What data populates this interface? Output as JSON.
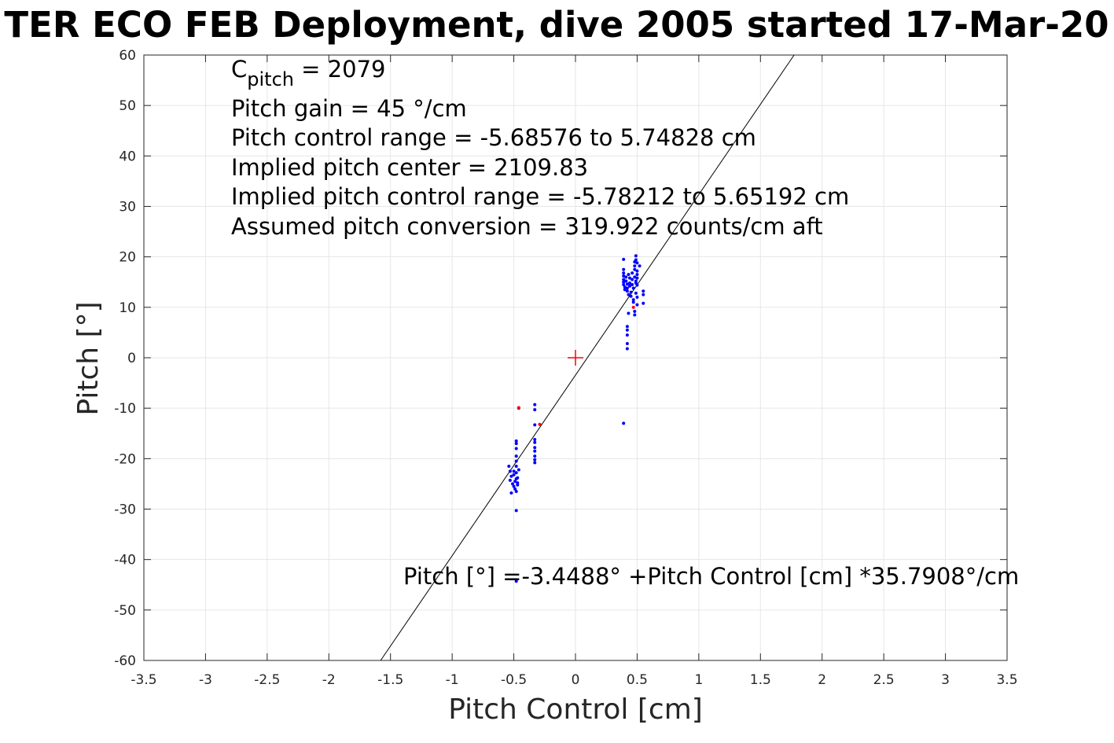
{
  "chart_data": {
    "type": "scatter",
    "title": "TER ECO FEB Deployment, dive 2005 started 17-Mar-20",
    "xlabel": "Pitch Control [cm]",
    "ylabel": "Pitch [°]",
    "xlim": [
      -3.5,
      3.5
    ],
    "ylim": [
      -60,
      60
    ],
    "xticks": [
      -3.5,
      -3,
      -2.5,
      -2,
      -1.5,
      -1,
      -0.5,
      0,
      0.5,
      1,
      1.5,
      2,
      2.5,
      3,
      3.5
    ],
    "yticks": [
      -60,
      -50,
      -40,
      -30,
      -20,
      -10,
      0,
      10,
      20,
      30,
      40,
      50,
      60
    ],
    "xtick_labels": [
      "-3.5",
      "-3",
      "-2.5",
      "-2",
      "-1.5",
      "-1",
      "-0.5",
      "0",
      "0.5",
      "1",
      "1.5",
      "2",
      "2.5",
      "3",
      "3.5"
    ],
    "ytick_labels": [
      "-60",
      "-50",
      "-40",
      "-30",
      "-20",
      "-10",
      "0",
      "10",
      "20",
      "30",
      "40",
      "50",
      "60"
    ],
    "grid": true,
    "colors": {
      "main": "#0000ff",
      "flagged": "#ff0000",
      "fit": "#000000",
      "center": "#ff0000"
    },
    "series": [
      {
        "color": "#0000ff",
        "points": [
          [
            -0.54,
            -21.5
          ],
          [
            -0.53,
            -22.5
          ],
          [
            -0.52,
            -23.5
          ],
          [
            -0.53,
            -24.3
          ],
          [
            -0.51,
            -25.0
          ],
          [
            -0.52,
            -26.8
          ],
          [
            -0.5,
            -22.5
          ],
          [
            -0.5,
            -23.2
          ],
          [
            -0.49,
            -24.5
          ],
          [
            -0.5,
            -25.5
          ],
          [
            -0.49,
            -26.0
          ],
          [
            -0.48,
            -21.5
          ],
          [
            -0.48,
            -22.8
          ],
          [
            -0.48,
            -24.0
          ],
          [
            -0.47,
            -25.2
          ],
          [
            -0.48,
            -18.0
          ],
          [
            -0.48,
            -17.0
          ],
          [
            -0.48,
            -16.5
          ],
          [
            -0.48,
            -19.5
          ],
          [
            -0.48,
            -20.5
          ],
          [
            -0.47,
            -23.8
          ],
          [
            -0.47,
            -24.8
          ],
          [
            -0.48,
            -26.5
          ],
          [
            -0.46,
            -22.2
          ],
          [
            -0.48,
            -30.3
          ],
          [
            -0.48,
            -44.3
          ],
          [
            -0.46,
            -10.0
          ],
          [
            -0.33,
            -9.3
          ],
          [
            -0.33,
            -10.3
          ],
          [
            -0.33,
            -13.3
          ],
          [
            -0.33,
            -16.2
          ],
          [
            -0.33,
            -16.8
          ],
          [
            -0.33,
            -17.8
          ],
          [
            -0.33,
            -18.5
          ],
          [
            -0.33,
            -19.5
          ],
          [
            -0.33,
            -20.2
          ],
          [
            -0.33,
            -20.8
          ],
          [
            0.39,
            19.5
          ],
          [
            0.39,
            17.5
          ],
          [
            0.39,
            16.8
          ],
          [
            0.39,
            16.2
          ],
          [
            0.39,
            15.5
          ],
          [
            0.39,
            15.0
          ],
          [
            0.39,
            14.5
          ],
          [
            0.4,
            14.0
          ],
          [
            0.4,
            13.5
          ],
          [
            0.41,
            16.0
          ],
          [
            0.41,
            15.2
          ],
          [
            0.42,
            14.6
          ],
          [
            0.42,
            13.8
          ],
          [
            0.42,
            13.2
          ],
          [
            0.43,
            12.5
          ],
          [
            0.43,
            16.5
          ],
          [
            0.44,
            15.8
          ],
          [
            0.44,
            14.8
          ],
          [
            0.44,
            14.2
          ],
          [
            0.45,
            13.0
          ],
          [
            0.45,
            12.2
          ],
          [
            0.46,
            16.8
          ],
          [
            0.46,
            15.5
          ],
          [
            0.46,
            14.5
          ],
          [
            0.47,
            13.8
          ],
          [
            0.47,
            11.5
          ],
          [
            0.47,
            11.0
          ],
          [
            0.48,
            19.0
          ],
          [
            0.48,
            18.2
          ],
          [
            0.48,
            17.5
          ],
          [
            0.48,
            16.0
          ],
          [
            0.49,
            20.2
          ],
          [
            0.49,
            19.4
          ],
          [
            0.49,
            15.2
          ],
          [
            0.49,
            14.8
          ],
          [
            0.49,
            12.8
          ],
          [
            0.5,
            18.8
          ],
          [
            0.5,
            17.2
          ],
          [
            0.5,
            16.5
          ],
          [
            0.5,
            15.8
          ],
          [
            0.5,
            14.4
          ],
          [
            0.5,
            12.0
          ],
          [
            0.5,
            10.5
          ],
          [
            0.48,
            9.2
          ],
          [
            0.48,
            8.5
          ],
          [
            0.43,
            8.8
          ],
          [
            0.42,
            6.2
          ],
          [
            0.42,
            5.5
          ],
          [
            0.42,
            4.5
          ],
          [
            0.42,
            2.8
          ],
          [
            0.42,
            1.8
          ],
          [
            0.52,
            18.2
          ],
          [
            0.55,
            13.2
          ],
          [
            0.55,
            12.5
          ],
          [
            0.55,
            10.8
          ],
          [
            0.39,
            -13.0
          ]
        ]
      },
      {
        "color": "#ff0000",
        "points": [
          [
            -0.46,
            -9.9
          ],
          [
            -0.29,
            -13.2
          ],
          [
            0.47,
            10.0
          ]
        ]
      }
    ],
    "center_marker": [
      0,
      0
    ],
    "fit": {
      "intercept": -3.4488,
      "slope": 35.7908
    },
    "annotations": [
      "C",
      "pitch",
      " = 2079",
      "Pitch gain = 45 °/cm",
      "Pitch control range = -5.68576 to 5.74828 cm",
      "Implied pitch center = 2109.83",
      "Implied pitch control range = -5.78212 to 5.65192 cm",
      "Assumed pitch conversion = 319.922 counts/cm aft"
    ],
    "fit_label": "Pitch [°] =-3.4488° +Pitch Control [cm] *35.7908°/cm"
  }
}
